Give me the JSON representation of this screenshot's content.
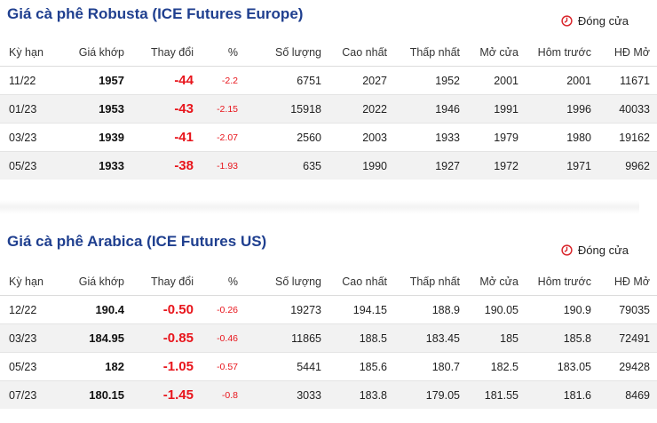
{
  "robusta": {
    "title": "Giá cà phê Robusta (ICE Futures Europe)",
    "status": "Đóng cửa",
    "headers": [
      "Kỳ hạn",
      "Giá khớp",
      "Thay đổi",
      "%",
      "Số lượng",
      "Cao nhất",
      "Thấp nhất",
      "Mở cửa",
      "Hôm trước",
      "HĐ Mở"
    ],
    "rows": [
      [
        "11/22",
        "1957",
        "-44",
        "-2.2",
        "6751",
        "2027",
        "1952",
        "2001",
        "2001",
        "11671"
      ],
      [
        "01/23",
        "1953",
        "-43",
        "-2.15",
        "15918",
        "2022",
        "1946",
        "1991",
        "1996",
        "40033"
      ],
      [
        "03/23",
        "1939",
        "-41",
        "-2.07",
        "2560",
        "2003",
        "1933",
        "1979",
        "1980",
        "19162"
      ],
      [
        "05/23",
        "1933",
        "-38",
        "-1.93",
        "635",
        "1990",
        "1927",
        "1972",
        "1971",
        "9962"
      ]
    ]
  },
  "arabica": {
    "title": "Giá cà phê Arabica (ICE Futures US)",
    "status": "Đóng cửa",
    "headers": [
      "Kỳ hạn",
      "Giá khớp",
      "Thay đổi",
      "%",
      "Số lượng",
      "Cao nhất",
      "Thấp nhất",
      "Mở cửa",
      "Hôm trước",
      "HĐ Mở"
    ],
    "rows": [
      [
        "12/22",
        "190.4",
        "-0.50",
        "-0.26",
        "19273",
        "194.15",
        "188.9",
        "190.05",
        "190.9",
        "79035"
      ],
      [
        "03/23",
        "184.95",
        "-0.85",
        "-0.46",
        "11865",
        "188.5",
        "183.45",
        "185",
        "185.8",
        "72491"
      ],
      [
        "05/23",
        "182",
        "-1.05",
        "-0.57",
        "5441",
        "185.6",
        "180.7",
        "182.5",
        "183.05",
        "29428"
      ],
      [
        "07/23",
        "180.15",
        "-1.45",
        "-0.8",
        "3033",
        "183.8",
        "179.05",
        "181.55",
        "181.6",
        "8469"
      ]
    ]
  },
  "colors": {
    "title": "#1f3f8f",
    "negative": "#e8141b",
    "clock": "#d9262c",
    "row_alt": "#f2f2f2"
  },
  "icons": {
    "status": "clock-icon"
  }
}
